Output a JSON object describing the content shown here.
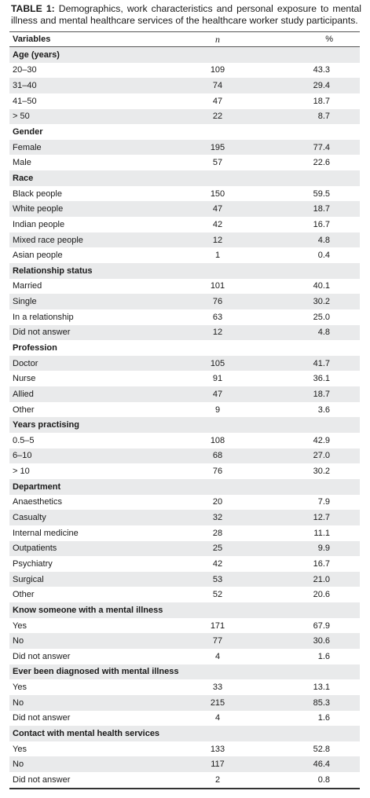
{
  "caption": {
    "label": "TABLE 1:",
    "text": "Demographics, work characteristics and personal exposure to mental illness and mental healthcare services of the healthcare worker study participants."
  },
  "table": {
    "header": [
      "Variables",
      "n",
      "%"
    ],
    "sections": [
      {
        "title": "Age (years)",
        "rows": [
          [
            "20–30",
            "109",
            "43.3"
          ],
          [
            "31–40",
            "74",
            "29.4"
          ],
          [
            "41–50",
            "47",
            "18.7"
          ],
          [
            "> 50",
            "22",
            "8.7"
          ]
        ]
      },
      {
        "title": "Gender",
        "rows": [
          [
            "Female",
            "195",
            "77.4"
          ],
          [
            "Male",
            "57",
            "22.6"
          ]
        ]
      },
      {
        "title": "Race",
        "rows": [
          [
            "Black people",
            "150",
            "59.5"
          ],
          [
            "White people",
            "47",
            "18.7"
          ],
          [
            "Indian people",
            "42",
            "16.7"
          ],
          [
            "Mixed  race people",
            "12",
            "4.8"
          ],
          [
            "Asian people",
            "1",
            "0.4"
          ]
        ]
      },
      {
        "title": "Relationship status",
        "rows": [
          [
            "Married",
            "101",
            "40.1"
          ],
          [
            "Single",
            "76",
            "30.2"
          ],
          [
            "In a relationship",
            "63",
            "25.0"
          ],
          [
            "Did not answer",
            "12",
            "4.8"
          ]
        ]
      },
      {
        "title": "Profession",
        "rows": [
          [
            "Doctor",
            "105",
            "41.7"
          ],
          [
            "Nurse",
            "91",
            "36.1"
          ],
          [
            "Allied",
            "47",
            "18.7"
          ],
          [
            "Other",
            "9",
            "3.6"
          ]
        ]
      },
      {
        "title": "Years practising",
        "rows": [
          [
            "0.5–5",
            "108",
            "42.9"
          ],
          [
            "6–10",
            "68",
            "27.0"
          ],
          [
            "> 10",
            "76",
            "30.2"
          ]
        ]
      },
      {
        "title": "Department",
        "rows": [
          [
            "Anaesthetics",
            "20",
            "7.9"
          ],
          [
            "Casualty",
            "32",
            "12.7"
          ],
          [
            "Internal medicine",
            "28",
            "11.1"
          ],
          [
            "Outpatients",
            "25",
            "9.9"
          ],
          [
            "Psychiatry",
            "42",
            "16.7"
          ],
          [
            "Surgical",
            "53",
            "21.0"
          ],
          [
            "Other",
            "52",
            "20.6"
          ]
        ]
      },
      {
        "title": "Know someone with a mental illness",
        "rows": [
          [
            "Yes",
            "171",
            "67.9"
          ],
          [
            "No",
            "77",
            "30.6"
          ],
          [
            "Did not answer",
            "4",
            "1.6"
          ]
        ]
      },
      {
        "title": "Ever been diagnosed with mental illness",
        "rows": [
          [
            "Yes",
            "33",
            "13.1"
          ],
          [
            "No",
            "215",
            "85.3"
          ],
          [
            "Did not answer",
            "4",
            "1.6"
          ]
        ]
      },
      {
        "title": "Contact with mental health services",
        "rows": [
          [
            "Yes",
            "133",
            "52.8"
          ],
          [
            "No",
            "117",
            "46.4"
          ],
          [
            "Did not answer",
            "2",
            "0.8"
          ]
        ]
      }
    ]
  }
}
